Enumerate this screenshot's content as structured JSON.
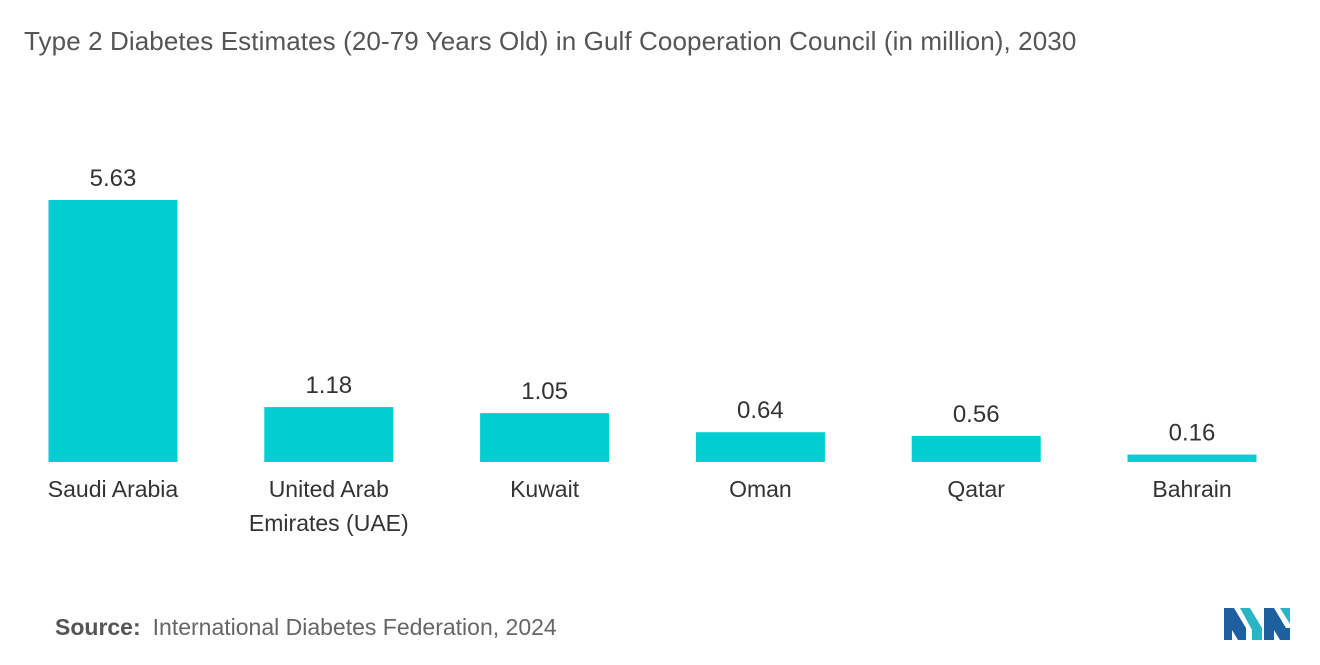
{
  "chart_data": {
    "type": "bar",
    "title": "Type 2 Diabetes Estimates (20-79 Years Old) in Gulf Cooperation Council (in million), 2030",
    "categories": [
      [
        "Saudi Arabia"
      ],
      [
        "United Arab",
        "Emirates (UAE)"
      ],
      [
        "Kuwait"
      ],
      [
        "Oman"
      ],
      [
        "Qatar"
      ],
      [
        "Bahrain"
      ]
    ],
    "values": [
      5.63,
      1.18,
      1.05,
      0.64,
      0.56,
      0.16
    ],
    "value_labels": [
      "5.63",
      "1.18",
      "1.05",
      "0.64",
      "0.56",
      "0.16"
    ],
    "xlabel": "",
    "ylabel": "",
    "ylim": [
      0,
      5.63
    ],
    "grid": false,
    "legend": "none",
    "bar_color": "#00CED1"
  },
  "source": {
    "label": "Source:",
    "text": "International Diabetes Federation, 2024"
  },
  "logo": {
    "icon": "mordor-intelligence-logo-icon",
    "colors": [
      "#1E5FA0",
      "#2BB5C4"
    ]
  }
}
